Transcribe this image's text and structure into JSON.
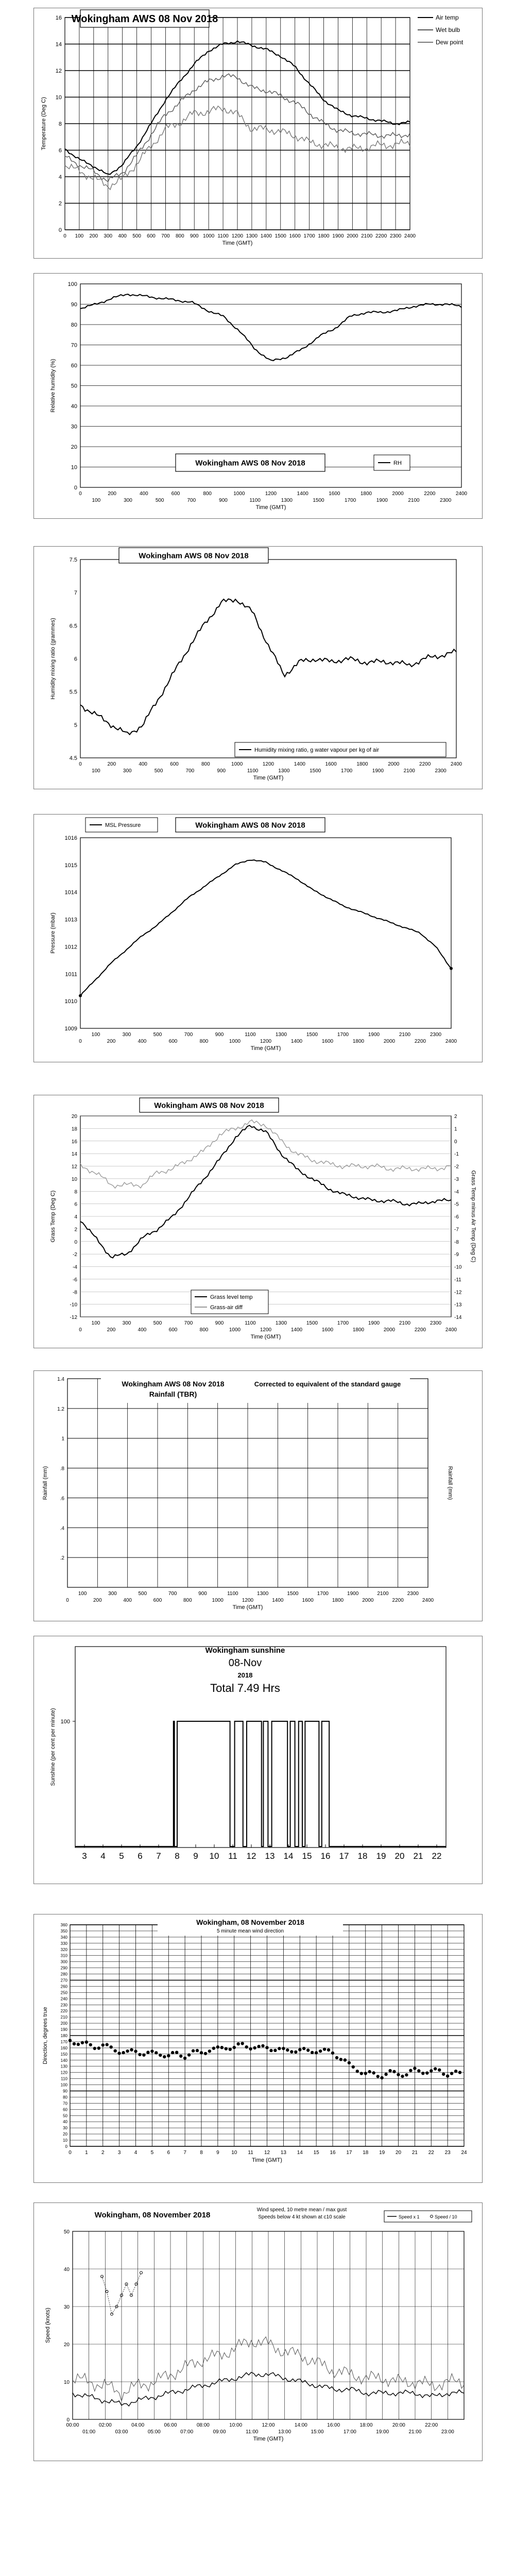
{
  "chart_data": [
    {
      "type": "line",
      "title": "Wokingham AWS 08 Nov 2018",
      "xlabel": "Time (GMT)",
      "ylabel": "Temperature (Deg C)",
      "ylim": [
        0,
        16
      ],
      "xticks": [
        "0",
        "100",
        "200",
        "300",
        "400",
        "500",
        "600",
        "700",
        "800",
        "900",
        "1000",
        "1100",
        "1200",
        "1300",
        "1400",
        "1500",
        "1600",
        "1700",
        "1800",
        "1900",
        "2000",
        "2100",
        "2200",
        "2300",
        "2400"
      ],
      "yticks": [
        "0",
        "2",
        "4",
        "6",
        "8",
        "10",
        "12",
        "14",
        "16"
      ],
      "legend": [
        "Air temp",
        "Wet bulb",
        "Dew point"
      ],
      "x": [
        0,
        100,
        200,
        300,
        400,
        500,
        600,
        700,
        800,
        900,
        1000,
        1100,
        1200,
        1300,
        1400,
        1500,
        1600,
        1700,
        1800,
        1900,
        2000,
        2100,
        2200,
        2300,
        2400
      ],
      "series": [
        {
          "name": "Air temp",
          "values": [
            6.1,
            5.3,
            4.8,
            4.1,
            4.9,
            6.3,
            8.0,
            9.8,
            11.2,
            12.5,
            13.5,
            14.0,
            14.2,
            13.9,
            13.6,
            13.1,
            12.3,
            11.0,
            9.8,
            9.0,
            8.6,
            8.4,
            8.2,
            8.0,
            8.1
          ]
        },
        {
          "name": "Wet bulb",
          "values": [
            5.5,
            4.9,
            4.4,
            3.7,
            4.3,
            5.6,
            7.2,
            8.7,
            9.6,
            10.6,
            11.2,
            11.6,
            11.5,
            10.7,
            10.5,
            10.1,
            9.6,
            8.8,
            8.0,
            7.5,
            7.3,
            7.2,
            7.1,
            7.1,
            7.2
          ]
        },
        {
          "name": "Dew point",
          "values": [
            4.9,
            4.4,
            3.9,
            3.3,
            3.8,
            5.0,
            6.3,
            7.6,
            8.1,
            8.8,
            8.9,
            9.2,
            8.7,
            7.6,
            7.6,
            7.4,
            7.1,
            6.6,
            6.4,
            6.2,
            6.1,
            6.2,
            6.4,
            6.4,
            6.6
          ]
        }
      ]
    },
    {
      "type": "line",
      "title": "Wokingham AWS 08 Nov 2018",
      "xlabel": "Time (GMT)",
      "ylabel": "Relative humidity (%)",
      "ylim": [
        0,
        100
      ],
      "xticks": [
        "0",
        "100",
        "200",
        "300",
        "400",
        "500",
        "600",
        "700",
        "800",
        "900",
        "1000",
        "1100",
        "1200",
        "1300",
        "1400",
        "1500",
        "1600",
        "1700",
        "1800",
        "1900",
        "2000",
        "2100",
        "2200",
        "2300",
        "2400"
      ],
      "yticks": [
        "0",
        "10",
        "20",
        "30",
        "40",
        "50",
        "60",
        "70",
        "80",
        "90",
        "100"
      ],
      "legend": [
        "RH"
      ],
      "x": [
        0,
        100,
        200,
        300,
        400,
        500,
        600,
        700,
        800,
        900,
        1000,
        1100,
        1200,
        1300,
        1400,
        1500,
        1600,
        1700,
        1800,
        1900,
        2000,
        2100,
        2200,
        2300,
        2400
      ],
      "series": [
        {
          "name": "RH",
          "values": [
            88,
            90,
            93,
            95,
            94,
            93,
            92,
            91,
            87,
            84,
            77,
            68,
            62,
            64,
            68,
            74,
            78,
            84,
            86,
            86,
            87,
            89,
            90,
            90,
            89
          ]
        }
      ]
    },
    {
      "type": "line",
      "title": "Wokingham AWS 08 Nov 2018",
      "xlabel": "Time (GMT)",
      "ylabel": "Humidity mixing ratio (grammes)",
      "ylim": [
        4.5,
        7.5
      ],
      "xticks": [
        "0",
        "100",
        "200",
        "300",
        "400",
        "500",
        "600",
        "700",
        "800",
        "900",
        "1000",
        "1100",
        "1200",
        "1300",
        "1400",
        "1500",
        "1600",
        "1700",
        "1800",
        "1900",
        "2000",
        "2100",
        "2200",
        "2300",
        "2400"
      ],
      "yticks": [
        "4.5",
        "5",
        "5.5",
        "6",
        "6.5",
        "7",
        "7.5"
      ],
      "legend": [
        "Humidity mixing ratio, g water vapour per kg of air"
      ],
      "x": [
        0,
        100,
        200,
        300,
        400,
        500,
        600,
        700,
        800,
        900,
        1000,
        1100,
        1200,
        1300,
        1400,
        1500,
        1600,
        1700,
        1800,
        1900,
        2000,
        2100,
        2200,
        2300,
        2400
      ],
      "series": [
        {
          "name": "Humidity mixing ratio, g water vapour per kg of air",
          "values": [
            5.3,
            5.15,
            5.0,
            4.85,
            5.0,
            5.4,
            5.8,
            6.2,
            6.55,
            6.85,
            6.9,
            6.7,
            6.2,
            5.75,
            5.95,
            6.0,
            5.95,
            6.0,
            5.95,
            5.95,
            5.95,
            5.9,
            6.0,
            6.05,
            6.1
          ]
        }
      ]
    },
    {
      "type": "line",
      "title": "Wokingham AWS 08 Nov 2018",
      "xlabel": "Time (GMT)",
      "ylabel": "Pressure (mbar)",
      "ylim": [
        1009,
        1016
      ],
      "xticks": [
        "100",
        "300",
        "500",
        "700",
        "900",
        "1100",
        "1300",
        "1500",
        "1700",
        "1900",
        "2100",
        "2300"
      ],
      "xticks2": [
        "0",
        "200",
        "400",
        "600",
        "800",
        "1000",
        "1200",
        "1400",
        "1600",
        "1800",
        "2000",
        "2200",
        "2400"
      ],
      "yticks": [
        "1009",
        "1010",
        "1011",
        "1012",
        "1013",
        "1014",
        "1015",
        "1016"
      ],
      "legend": [
        "MSL Pressure"
      ],
      "x": [
        0,
        100,
        200,
        300,
        400,
        500,
        600,
        700,
        800,
        900,
        1000,
        1100,
        1200,
        1300,
        1400,
        1500,
        1600,
        1700,
        1800,
        1900,
        2000,
        2100,
        2200,
        2300,
        2400
      ],
      "series": [
        {
          "name": "MSL Pressure",
          "values": [
            1010.2,
            1010.8,
            1011.4,
            1011.9,
            1012.4,
            1012.8,
            1013.3,
            1013.8,
            1014.2,
            1014.6,
            1015.0,
            1015.2,
            1015.1,
            1014.8,
            1014.5,
            1014.1,
            1013.8,
            1013.5,
            1013.3,
            1013.1,
            1012.9,
            1012.7,
            1012.5,
            1012.0,
            1011.2
          ]
        }
      ]
    },
    {
      "type": "line",
      "title": "Wokingham AWS 08 Nov 2018",
      "xlabel": "Time (GMT)",
      "ylabel": "Grass Temp (Deg C)",
      "ylabel2": "Grass Temp minus Air Temp (Deg C)",
      "ylim": [
        -12,
        20
      ],
      "ylim2": [
        -14,
        2
      ],
      "xticks": [
        "100",
        "300",
        "500",
        "700",
        "900",
        "1100",
        "1300",
        "1500",
        "1700",
        "1900",
        "2100",
        "2300"
      ],
      "xticks2": [
        "0",
        "200",
        "400",
        "600",
        "800",
        "1000",
        "1200",
        "1400",
        "1600",
        "1800",
        "2000",
        "2200",
        "2400"
      ],
      "yticks": [
        "-12",
        "-10",
        "-8",
        "-6",
        "-4",
        "-2",
        "0",
        "2",
        "4",
        "6",
        "8",
        "10",
        "12",
        "14",
        "16",
        "18",
        "20"
      ],
      "yticks2": [
        "-14",
        "-13",
        "-12",
        "-11",
        "-10",
        "-9",
        "-8",
        "-7",
        "-6",
        "-5",
        "-4",
        "-3",
        "-2",
        "-1",
        "0",
        "1",
        "2"
      ],
      "legend": [
        "Grass level temp",
        "Grass-air diff"
      ],
      "x": [
        0,
        100,
        200,
        300,
        400,
        500,
        600,
        700,
        800,
        900,
        1000,
        1100,
        1200,
        1300,
        1400,
        1500,
        1600,
        1700,
        1800,
        1900,
        2000,
        2100,
        2200,
        2300,
        2400
      ],
      "series": [
        {
          "name": "Grass level temp",
          "values": [
            3.5,
            0.5,
            -2.5,
            -2.0,
            0.5,
            2.0,
            4.0,
            7.0,
            10.0,
            13.0,
            16.5,
            18.5,
            17.5,
            14.0,
            11.5,
            10.0,
            8.5,
            7.5,
            7.0,
            6.5,
            6.5,
            6.0,
            6.0,
            6.5,
            6.5
          ]
        },
        {
          "name": "Grass-air diff",
          "values": [
            -2.0,
            -2.5,
            -3.5,
            -3.5,
            -3.5,
            -2.5,
            -2.2,
            -1.5,
            -0.8,
            0.5,
            1.0,
            1.5,
            1.3,
            0.0,
            -1.0,
            -1.5,
            -1.8,
            -2.0,
            -2.0,
            -2.0,
            -2.2,
            -2.2,
            -2.2,
            -2.2,
            -2.0
          ]
        }
      ]
    },
    {
      "type": "bar",
      "title": "Wokingham AWS 08 Nov 2018",
      "subtitle": "Rainfall (TBR)",
      "annotation": "Corrected to equivalent of the standard gauge",
      "xlabel": "Time (GMT)",
      "ylabel": "Rainfall (mm)",
      "ylabel2": "Rainfall (mm)",
      "ylim": [
        0,
        1.4
      ],
      "xticks": [
        "100",
        "300",
        "500",
        "700",
        "900",
        "1100",
        "1300",
        "1500",
        "1700",
        "1900",
        "2100",
        "2300"
      ],
      "xticks2": [
        "0",
        "200",
        "400",
        "600",
        "800",
        "1000",
        "1200",
        "1400",
        "1600",
        "1800",
        "2000",
        "2200",
        "2400"
      ],
      "yticks": [
        ".2",
        ".4",
        ".6",
        ".8",
        "1",
        "1.2",
        "1.4"
      ],
      "x": [],
      "values": []
    },
    {
      "type": "area",
      "title": "Wokingham sunshine",
      "date": "08-Nov",
      "year": "2018",
      "total": "Total 7.49 Hrs",
      "ylabel": "Sunshine (per cent per minute)",
      "xticks": [
        "3",
        "4",
        "5",
        "6",
        "7",
        "8",
        "9",
        "10",
        "11",
        "12",
        "13",
        "14",
        "15",
        "16",
        "17",
        "18",
        "19",
        "20",
        "21",
        "22"
      ],
      "yticks": [
        "100"
      ],
      "segments": [
        [
          7.8,
          7.85
        ],
        [
          8.0,
          10.85
        ],
        [
          11.1,
          11.55
        ],
        [
          11.75,
          12.55
        ],
        [
          12.65,
          12.9
        ],
        [
          13.1,
          13.95
        ],
        [
          14.1,
          14.35
        ],
        [
          14.55,
          14.75
        ],
        [
          14.9,
          15.65
        ],
        [
          15.8,
          16.2
        ]
      ]
    },
    {
      "type": "scatter",
      "title": "Wokingham,  08 November 2018",
      "subtitle": "5 minute mean wind direction",
      "xlabel": "Time (GMT)",
      "ylabel": "Direction, degrees true",
      "ylim": [
        0,
        360
      ],
      "xticks": [
        "0",
        "1",
        "2",
        "3",
        "4",
        "5",
        "6",
        "7",
        "8",
        "9",
        "10",
        "11",
        "12",
        "13",
        "14",
        "15",
        "16",
        "17",
        "18",
        "19",
        "20",
        "21",
        "22",
        "23",
        "24"
      ],
      "yticks": [
        "0",
        "10",
        "20",
        "30",
        "40",
        "50",
        "60",
        "70",
        "80",
        "90",
        "100",
        "110",
        "120",
        "130",
        "140",
        "150",
        "160",
        "170",
        "180",
        "190",
        "200",
        "210",
        "220",
        "230",
        "240",
        "250",
        "260",
        "270",
        "280",
        "290",
        "300",
        "310",
        "320",
        "330",
        "340",
        "350",
        "360"
      ],
      "series": [
        {
          "name": "Direction",
          "x": [
            0,
            0.5,
            1,
            1.5,
            2,
            2.5,
            3,
            3.5,
            4,
            4.5,
            5,
            5.5,
            6,
            6.5,
            7,
            7.5,
            8,
            8.5,
            9,
            9.5,
            10,
            10.5,
            11,
            11.5,
            12,
            12.5,
            13,
            13.5,
            14,
            14.5,
            15,
            15.5,
            16,
            16.5,
            17,
            17.5,
            18,
            18.5,
            19,
            19.5,
            20,
            20.5,
            21,
            21.5,
            22,
            22.5,
            23,
            23.5,
            24
          ],
          "values": [
            172,
            170,
            168,
            165,
            167,
            160,
            155,
            150,
            152,
            148,
            148,
            150,
            147,
            152,
            150,
            155,
            155,
            158,
            157,
            160,
            157,
            162,
            160,
            158,
            162,
            160,
            158,
            160,
            158,
            155,
            155,
            152,
            150,
            140,
            130,
            125,
            118,
            120,
            118,
            122,
            120,
            118,
            122,
            120,
            118,
            120,
            116,
            118,
            118
          ]
        }
      ]
    },
    {
      "type": "line",
      "title": "Wokingham,  08 November 2018",
      "subtitle1": "Wind speed, 10 metre mean / max gust",
      "subtitle2": "Speeds below 4 kt shown at c10 scale",
      "xlabel": "Time (GMT)",
      "ylabel": "Speed (knots)",
      "ylim": [
        0,
        50
      ],
      "xticks": [
        "00:00",
        "02:00",
        "04:00",
        "06:00",
        "08:00",
        "10:00",
        "12:00",
        "14:00",
        "16:00",
        "18:00",
        "20:00",
        "22:00"
      ],
      "xticks2": [
        "01:00",
        "03:00",
        "05:00",
        "07:00",
        "09:00",
        "11:00",
        "13:00",
        "15:00",
        "17:00",
        "19:00",
        "21:00",
        "23:00"
      ],
      "yticks": [
        "0",
        "10",
        "20",
        "30",
        "40",
        "50"
      ],
      "legend": [
        "Speed x 1",
        "Speed / 10"
      ],
      "x": [
        0,
        1,
        2,
        3,
        4,
        5,
        6,
        7,
        8,
        9,
        10,
        11,
        12,
        13,
        14,
        15,
        16,
        17,
        18,
        19,
        20,
        21,
        22,
        23,
        24
      ],
      "series": [
        {
          "name": "Speed x 1",
          "values": [
            7,
            6,
            5,
            4,
            5,
            6,
            7,
            8,
            9,
            10,
            11,
            12,
            12,
            11,
            10,
            9,
            8,
            8,
            7,
            7,
            7,
            7,
            6,
            7,
            7
          ]
        },
        {
          "name": "Max gust",
          "values": [
            11,
            10,
            9,
            7,
            9,
            10,
            12,
            14,
            16,
            17,
            19,
            21,
            20,
            18,
            17,
            15,
            13,
            12,
            11,
            11,
            10,
            10,
            9,
            10,
            10
          ]
        },
        {
          "name": "Speed / 10",
          "x": [
            1.8,
            2.1,
            2.4,
            2.7,
            3.0,
            3.3,
            3.6,
            3.9,
            4.2
          ],
          "values": [
            38,
            34,
            28,
            30,
            33,
            36,
            33,
            36,
            39
          ]
        }
      ]
    }
  ]
}
